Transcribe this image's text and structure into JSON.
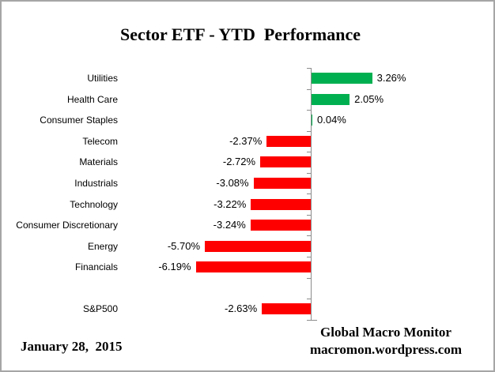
{
  "title": "Sector ETF - YTD  Performance",
  "chart_data": {
    "type": "bar",
    "orientation": "horizontal",
    "title": "Sector ETF - YTD  Performance",
    "categories": [
      "Utilities",
      "Health Care",
      "Consumer Staples",
      "Telecom",
      "Materials",
      "Industrials",
      "Technology",
      "Consumer Discretionary",
      "Energy",
      "Financials",
      "",
      "S&P500"
    ],
    "values": [
      3.26,
      2.05,
      0.04,
      -2.37,
      -2.72,
      -3.08,
      -3.22,
      -3.24,
      -5.7,
      -6.19,
      null,
      -2.63
    ],
    "value_labels": [
      "3.26%",
      "2.05%",
      "0.04%",
      "-2.37%",
      "-2.72%",
      "-3.08%",
      "-3.22%",
      "-3.24%",
      "-5.70%",
      "-6.19%",
      "",
      "-2.63%"
    ],
    "unit": "percent",
    "xlim": [
      -7,
      4
    ],
    "grid": false,
    "legend": false,
    "value_axis_at_zero": true,
    "positive_color": "#00B050",
    "negative_color": "#FF0000",
    "axis_color": "#8C8C8C"
  },
  "footer": {
    "date": "January 28,  2015",
    "credit_line1": "Global Macro Monitor",
    "credit_line2": "macromon.wordpress.com"
  }
}
